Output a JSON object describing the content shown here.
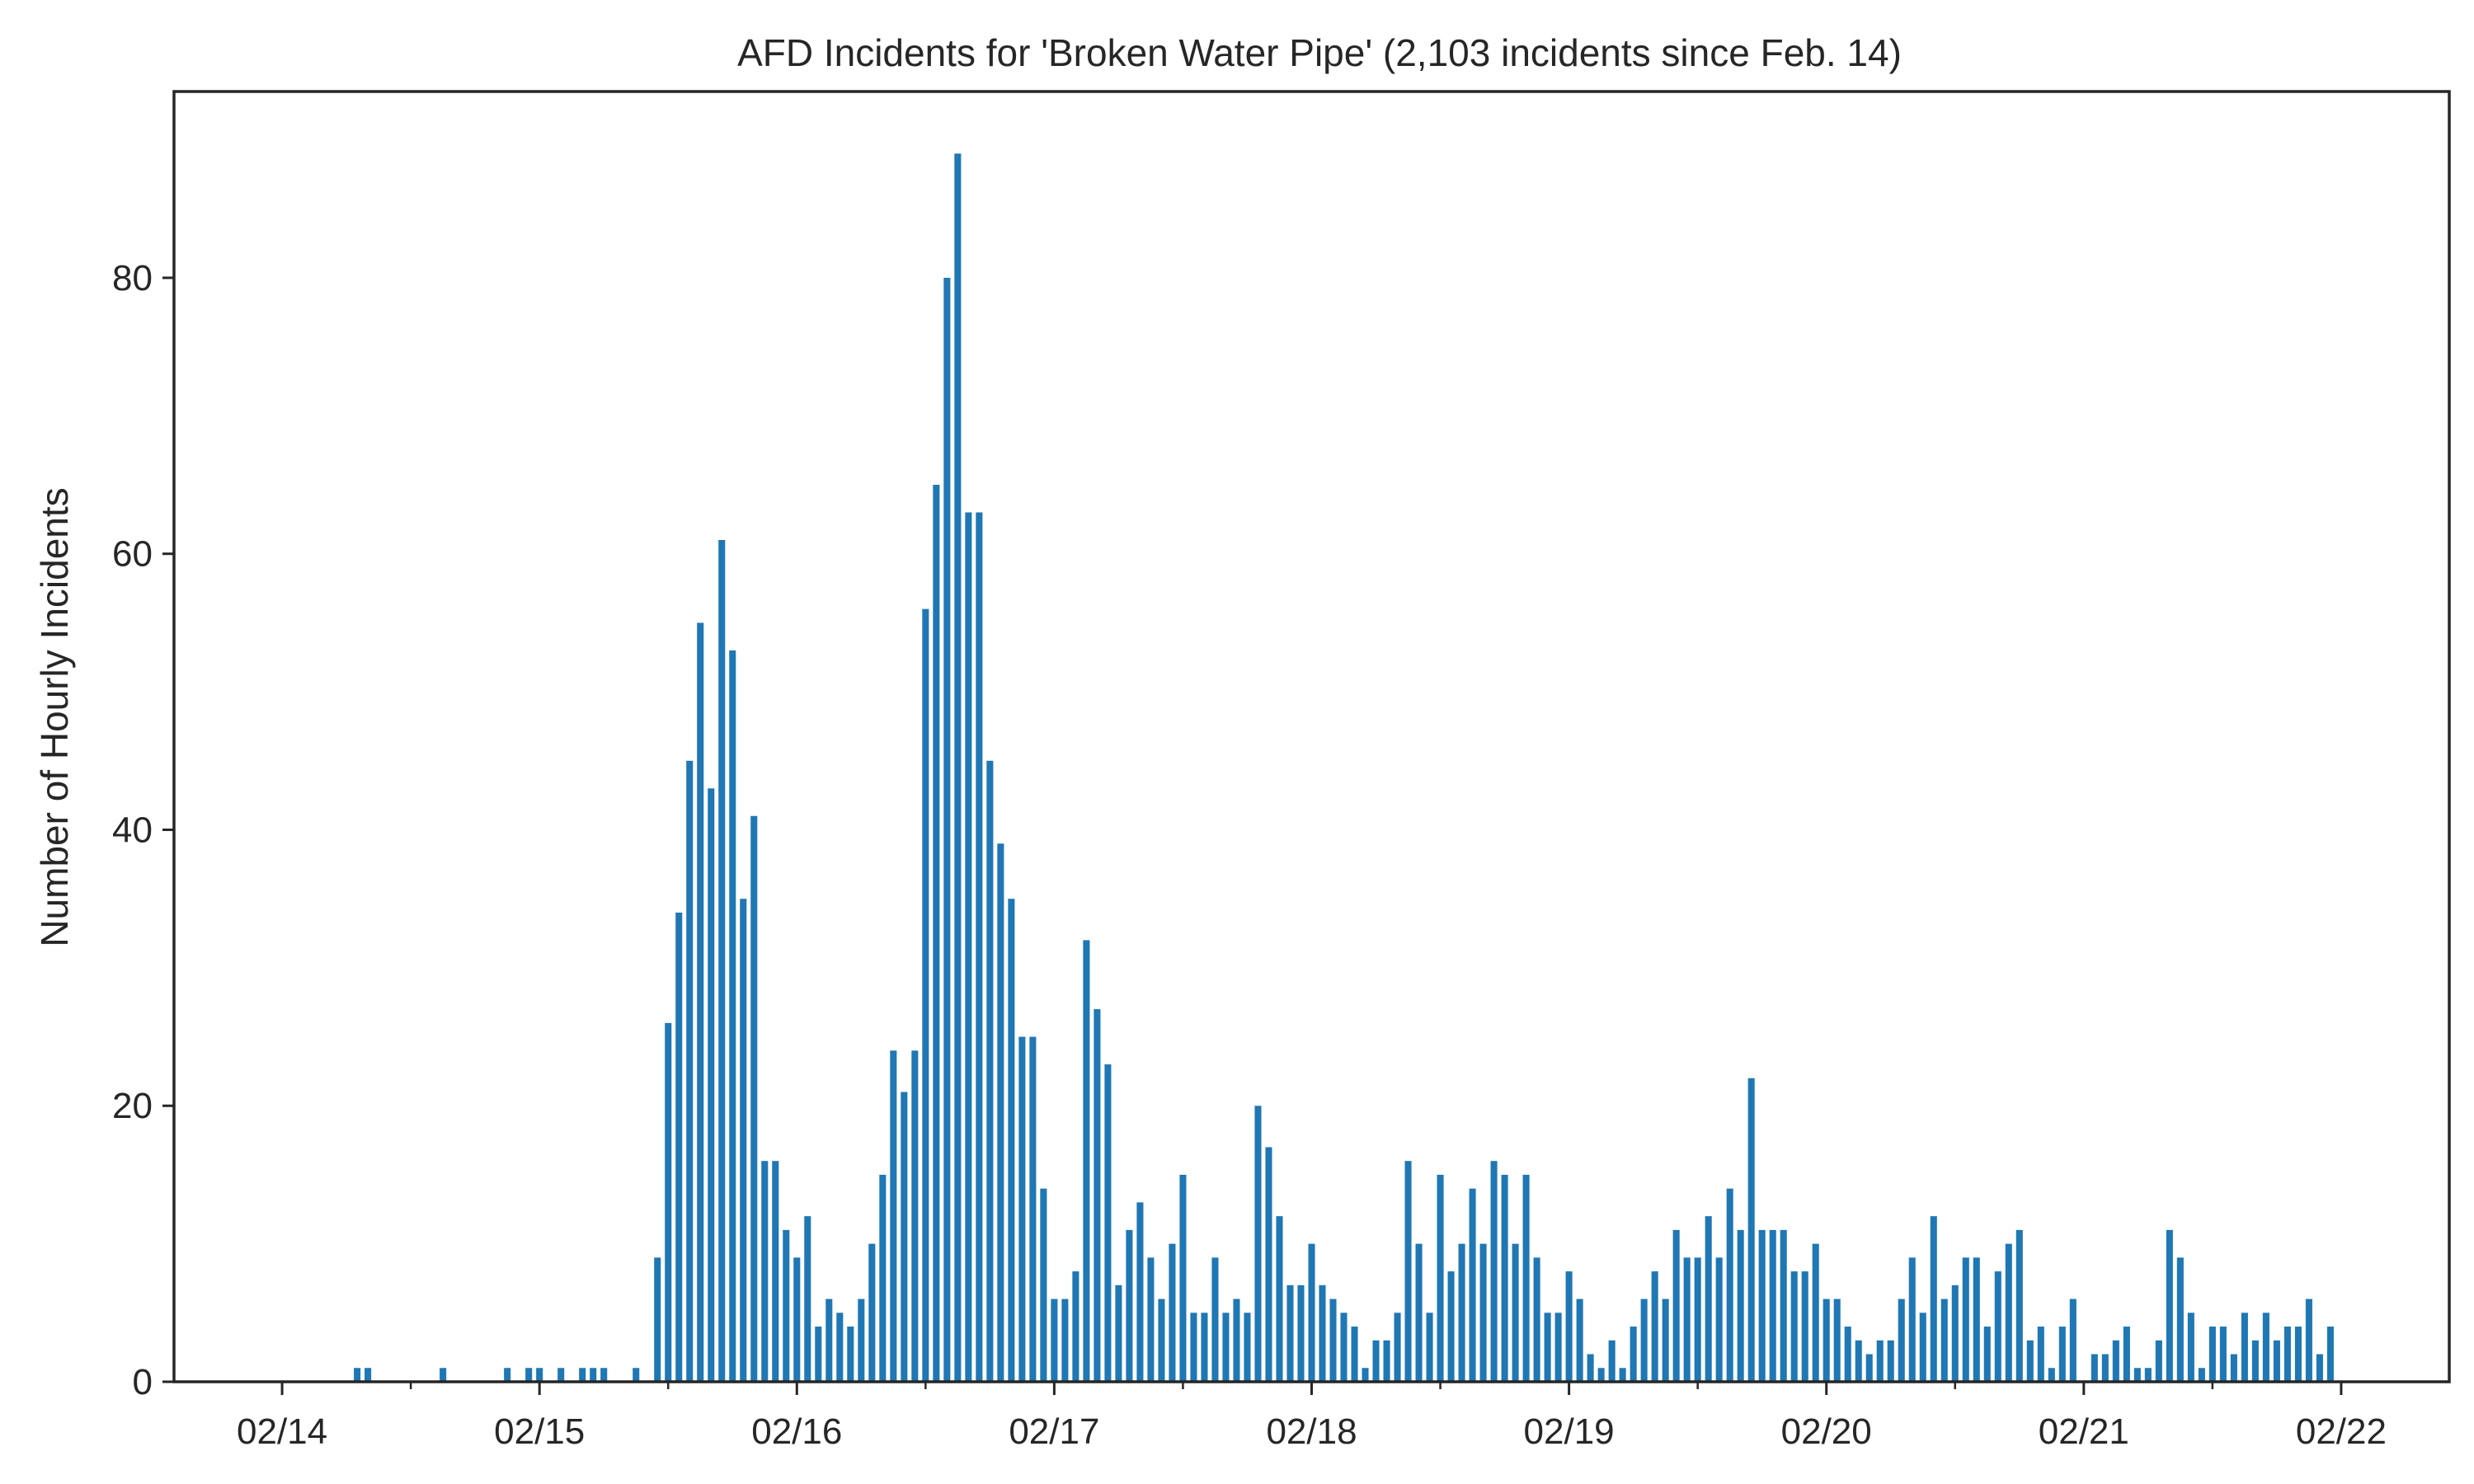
{
  "chart_data": {
    "type": "bar",
    "title": "AFD Incidents for 'Broken Water Pipe' (2,103 incidents since Feb. 14)",
    "xlabel": "",
    "ylabel": "Number of Hourly Incidents",
    "x_unit": "hourly bars starting 2021-02-14 00:00",
    "xlim_days": [
      -0.42,
      8.42
    ],
    "ylim": [
      0,
      93.5
    ],
    "y_ticks": [
      0,
      20,
      40,
      60,
      80
    ],
    "x_ticks": [
      {
        "day": 0,
        "label": "02/14"
      },
      {
        "day": 1,
        "label": "02/15"
      },
      {
        "day": 2,
        "label": "02/16"
      },
      {
        "day": 3,
        "label": "02/17"
      },
      {
        "day": 4,
        "label": "02/18"
      },
      {
        "day": 5,
        "label": "02/19"
      },
      {
        "day": 6,
        "label": "02/20"
      },
      {
        "day": 7,
        "label": "02/21"
      },
      {
        "day": 8,
        "label": "02/22"
      }
    ],
    "minor_x_ticks_days": [
      0.5,
      1.5,
      2.5,
      3.5,
      4.5,
      5.5,
      6.5,
      7.5
    ],
    "grid": false,
    "bar_color": "#1f77b4",
    "hourly_values": [
      0,
      0,
      0,
      0,
      0,
      0,
      0,
      1,
      1,
      0,
      0,
      0,
      0,
      0,
      0,
      1,
      0,
      0,
      0,
      0,
      0,
      1,
      0,
      1,
      1,
      0,
      1,
      0,
      1,
      1,
      1,
      0,
      0,
      1,
      0,
      9,
      26,
      34,
      45,
      55,
      43,
      61,
      53,
      35,
      41,
      16,
      16,
      11,
      9,
      12,
      4,
      6,
      5,
      4,
      6,
      10,
      15,
      24,
      21,
      24,
      56,
      65,
      80,
      89,
      63,
      63,
      45,
      39,
      35,
      25,
      25,
      14,
      6,
      6,
      8,
      32,
      27,
      23,
      7,
      11,
      13,
      9,
      6,
      10,
      15,
      5,
      5,
      9,
      5,
      6,
      5,
      20,
      17,
      12,
      7,
      7,
      10,
      7,
      6,
      5,
      4,
      1,
      3,
      3,
      5,
      16,
      10,
      5,
      15,
      8,
      10,
      14,
      10,
      16,
      15,
      10,
      15,
      9,
      5,
      5,
      8,
      6,
      2,
      1,
      3,
      1,
      4,
      6,
      8,
      6,
      11,
      9,
      9,
      12,
      9,
      14,
      11,
      22,
      11,
      11,
      11,
      8,
      8,
      10,
      6,
      6,
      4,
      3,
      2,
      3,
      3,
      6,
      9,
      5,
      12,
      6,
      7,
      9,
      9,
      4,
      8,
      10,
      11,
      3,
      4,
      1,
      4,
      6,
      0,
      2,
      2,
      3,
      4,
      1,
      1,
      3,
      11,
      9,
      5,
      1,
      4,
      4,
      2,
      5,
      3,
      5,
      3,
      4,
      4,
      6,
      2,
      4
    ]
  }
}
